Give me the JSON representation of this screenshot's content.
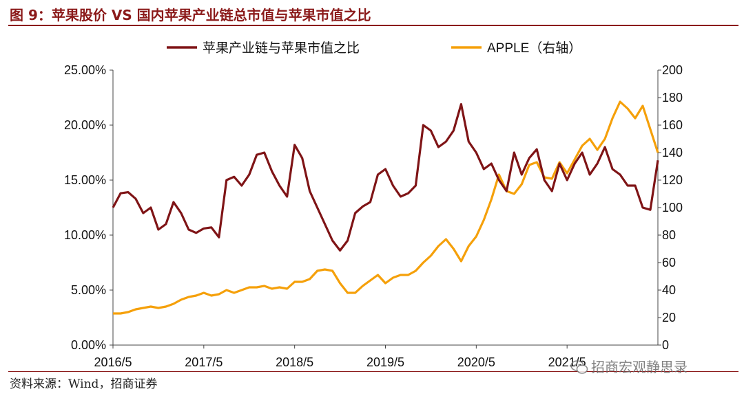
{
  "figure": {
    "title": "图 9：苹果股价 VS 国内苹果产业链总市值与苹果市值之比",
    "source": "资料来源：Wind，招商证券",
    "watermark": "招商宏观静思录"
  },
  "colors": {
    "accent": "#8b1a1a",
    "ratio": "#7f1416",
    "apple": "#f5a00a"
  },
  "chart_data": {
    "type": "line",
    "title": "",
    "xlabel": "",
    "ylabel": "",
    "x_ticks": [
      "2016/5",
      "2017/5",
      "2018/5",
      "2019/5",
      "2020/5",
      "2021/5"
    ],
    "x_range": [
      "2016/5",
      "2022/5"
    ],
    "y_left": {
      "range": [
        0,
        25
      ],
      "ticks": [
        "0.00%",
        "5.00%",
        "10.00%",
        "15.00%",
        "20.00%",
        "25.00%"
      ]
    },
    "y_right": {
      "range": [
        0,
        200
      ],
      "ticks": [
        "0",
        "20",
        "40",
        "60",
        "80",
        "100",
        "120",
        "140",
        "160",
        "180",
        "200"
      ]
    },
    "legend": {
      "position": "top"
    },
    "grid": false,
    "series": [
      {
        "name": "苹果产业链与苹果市值之比",
        "axis": "left",
        "points": [
          [
            "2016/5",
            12.5
          ],
          [
            "2016/6",
            13.8
          ],
          [
            "2016/7",
            13.9
          ],
          [
            "2016/8",
            13.3
          ],
          [
            "2016/9",
            12.0
          ],
          [
            "2016/10",
            12.5
          ],
          [
            "2016/11",
            10.5
          ],
          [
            "2016/12",
            11.0
          ],
          [
            "2017/1",
            13.0
          ],
          [
            "2017/2",
            12.0
          ],
          [
            "2017/3",
            10.5
          ],
          [
            "2017/4",
            10.2
          ],
          [
            "2017/5",
            10.6
          ],
          [
            "2017/6",
            10.7
          ],
          [
            "2017/7",
            9.8
          ],
          [
            "2017/8",
            15.0
          ],
          [
            "2017/9",
            15.3
          ],
          [
            "2017/10",
            14.5
          ],
          [
            "2017/11",
            15.5
          ],
          [
            "2017/12",
            17.3
          ],
          [
            "2018/1",
            17.5
          ],
          [
            "2018/2",
            15.8
          ],
          [
            "2018/3",
            14.5
          ],
          [
            "2018/4",
            13.5
          ],
          [
            "2018/5",
            18.2
          ],
          [
            "2018/6",
            17.0
          ],
          [
            "2018/7",
            14.0
          ],
          [
            "2018/8",
            12.5
          ],
          [
            "2018/9",
            11.0
          ],
          [
            "2018/10",
            9.5
          ],
          [
            "2018/11",
            8.6
          ],
          [
            "2018/12",
            9.5
          ],
          [
            "2019/1",
            12.0
          ],
          [
            "2019/2",
            12.6
          ],
          [
            "2019/3",
            13.0
          ],
          [
            "2019/4",
            15.5
          ],
          [
            "2019/5",
            16.0
          ],
          [
            "2019/6",
            14.5
          ],
          [
            "2019/7",
            13.5
          ],
          [
            "2019/8",
            13.8
          ],
          [
            "2019/9",
            14.5
          ],
          [
            "2019/10",
            20.0
          ],
          [
            "2019/11",
            19.5
          ],
          [
            "2019/12",
            18.0
          ],
          [
            "2020/1",
            18.5
          ],
          [
            "2020/2",
            19.5
          ],
          [
            "2020/3",
            21.9
          ],
          [
            "2020/4",
            18.5
          ],
          [
            "2020/5",
            17.5
          ],
          [
            "2020/6",
            16.0
          ],
          [
            "2020/7",
            16.5
          ],
          [
            "2020/8",
            15.0
          ],
          [
            "2020/9",
            14.0
          ],
          [
            "2020/10",
            17.5
          ],
          [
            "2020/11",
            15.5
          ],
          [
            "2020/12",
            17.0
          ],
          [
            "2021/1",
            17.8
          ],
          [
            "2021/2",
            15.0
          ],
          [
            "2021/3",
            14.0
          ],
          [
            "2021/4",
            16.5
          ],
          [
            "2021/5",
            15.0
          ],
          [
            "2021/6",
            16.5
          ],
          [
            "2021/7",
            17.5
          ],
          [
            "2021/8",
            15.5
          ],
          [
            "2021/9",
            16.5
          ],
          [
            "2021/10",
            18.0
          ],
          [
            "2021/11",
            16.0
          ],
          [
            "2021/12",
            15.5
          ],
          [
            "2022/1",
            14.5
          ],
          [
            "2022/2",
            14.5
          ],
          [
            "2022/3",
            12.5
          ],
          [
            "2022/4",
            12.3
          ],
          [
            "2022/5",
            16.8
          ]
        ]
      },
      {
        "name": "APPLE（右轴）",
        "axis": "right",
        "points": [
          [
            "2016/5",
            23
          ],
          [
            "2016/6",
            23
          ],
          [
            "2016/7",
            24
          ],
          [
            "2016/8",
            26
          ],
          [
            "2016/9",
            27
          ],
          [
            "2016/10",
            28
          ],
          [
            "2016/11",
            27
          ],
          [
            "2016/12",
            28
          ],
          [
            "2017/1",
            30
          ],
          [
            "2017/2",
            33
          ],
          [
            "2017/3",
            35
          ],
          [
            "2017/4",
            36
          ],
          [
            "2017/5",
            38
          ],
          [
            "2017/6",
            36
          ],
          [
            "2017/7",
            37
          ],
          [
            "2017/8",
            40
          ],
          [
            "2017/9",
            38
          ],
          [
            "2017/10",
            40
          ],
          [
            "2017/11",
            42
          ],
          [
            "2017/12",
            42
          ],
          [
            "2018/1",
            43
          ],
          [
            "2018/2",
            41
          ],
          [
            "2018/3",
            42
          ],
          [
            "2018/4",
            41
          ],
          [
            "2018/5",
            46
          ],
          [
            "2018/6",
            46
          ],
          [
            "2018/7",
            48
          ],
          [
            "2018/8",
            54
          ],
          [
            "2018/9",
            55
          ],
          [
            "2018/10",
            54
          ],
          [
            "2018/11",
            45
          ],
          [
            "2018/12",
            38
          ],
          [
            "2019/1",
            38
          ],
          [
            "2019/2",
            43
          ],
          [
            "2019/3",
            47
          ],
          [
            "2019/4",
            51
          ],
          [
            "2019/5",
            45
          ],
          [
            "2019/6",
            49
          ],
          [
            "2019/7",
            51
          ],
          [
            "2019/8",
            51
          ],
          [
            "2019/9",
            54
          ],
          [
            "2019/10",
            60
          ],
          [
            "2019/11",
            65
          ],
          [
            "2019/12",
            72
          ],
          [
            "2020/1",
            77
          ],
          [
            "2020/2",
            70
          ],
          [
            "2020/3",
            61
          ],
          [
            "2020/4",
            72
          ],
          [
            "2020/5",
            79
          ],
          [
            "2020/6",
            91
          ],
          [
            "2020/7",
            106
          ],
          [
            "2020/8",
            124
          ],
          [
            "2020/9",
            112
          ],
          [
            "2020/10",
            110
          ],
          [
            "2020/11",
            117
          ],
          [
            "2020/12",
            131
          ],
          [
            "2021/1",
            133
          ],
          [
            "2021/2",
            122
          ],
          [
            "2021/3",
            121
          ],
          [
            "2021/4",
            133
          ],
          [
            "2021/5",
            125
          ],
          [
            "2021/6",
            135
          ],
          [
            "2021/7",
            145
          ],
          [
            "2021/8",
            150
          ],
          [
            "2021/9",
            142
          ],
          [
            "2021/10",
            150
          ],
          [
            "2021/11",
            165
          ],
          [
            "2021/12",
            177
          ],
          [
            "2022/1",
            172
          ],
          [
            "2022/2",
            165
          ],
          [
            "2022/3",
            174
          ],
          [
            "2022/4",
            157
          ],
          [
            "2022/5",
            140
          ]
        ]
      }
    ]
  }
}
